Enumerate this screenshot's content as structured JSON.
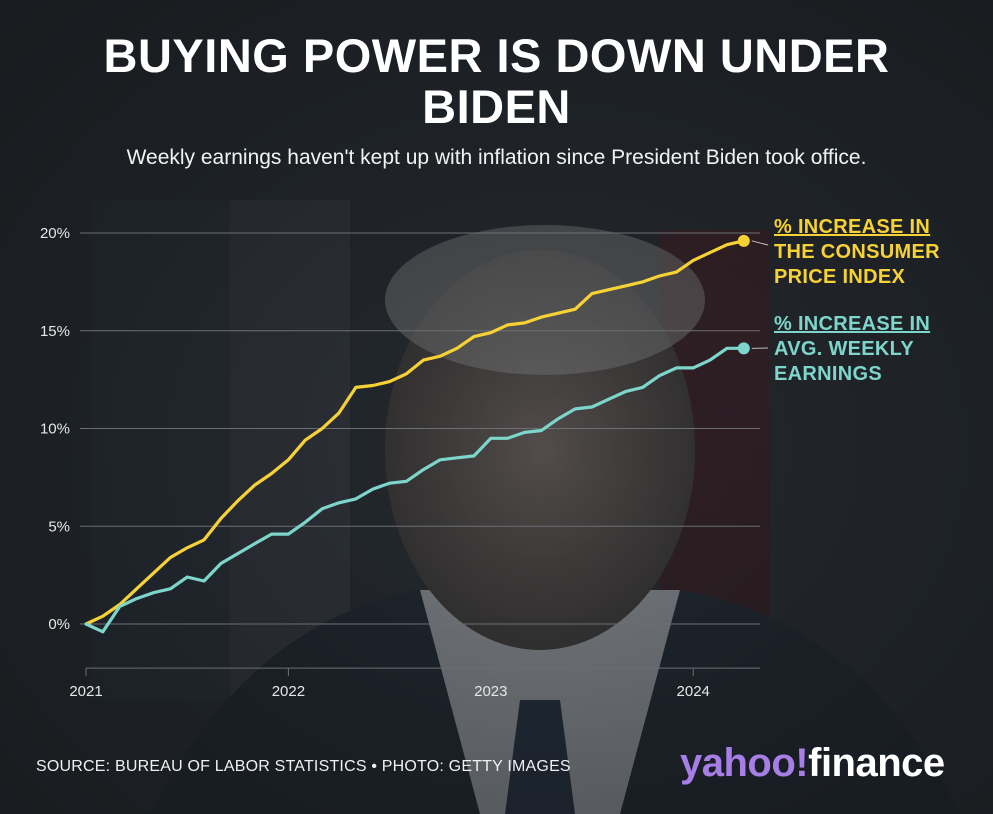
{
  "title": "BUYING POWER IS DOWN UNDER BIDEN",
  "subtitle": "Weekly earnings haven't kept up with inflation since President Biden took office.",
  "colors": {
    "cpi": "#f6d234",
    "wages": "#7dd5cb",
    "grid": "#6b6f74",
    "text": "#e6e6e6"
  },
  "chart_data": {
    "type": "line",
    "ylim": [
      -2,
      20
    ],
    "xlim": [
      2021.0,
      2024.33
    ],
    "yticks": [
      0,
      5,
      10,
      15,
      20
    ],
    "ytick_labels": [
      "0%",
      "5%",
      "10%",
      "15%",
      "20%"
    ],
    "xticks": [
      2021,
      2022,
      2023,
      2024
    ],
    "xtick_labels": [
      "2021",
      "2022",
      "2023",
      "2024"
    ],
    "grid": true,
    "series": [
      {
        "name": "% INCREASE IN THE CONSUMER PRICE INDEX",
        "color": "#f6d234",
        "x": [
          2021.0,
          2021.083,
          2021.167,
          2021.25,
          2021.333,
          2021.417,
          2021.5,
          2021.583,
          2021.667,
          2021.75,
          2021.833,
          2021.917,
          2022.0,
          2022.083,
          2022.167,
          2022.25,
          2022.333,
          2022.417,
          2022.5,
          2022.583,
          2022.667,
          2022.75,
          2022.833,
          2022.917,
          2023.0,
          2023.083,
          2023.167,
          2023.25,
          2023.333,
          2023.417,
          2023.5,
          2023.583,
          2023.667,
          2023.75,
          2023.833,
          2023.917,
          2024.0,
          2024.083,
          2024.167,
          2024.25
        ],
        "values": [
          0.0,
          0.4,
          1.0,
          1.8,
          2.6,
          3.4,
          3.9,
          4.3,
          5.4,
          6.3,
          7.1,
          7.7,
          8.4,
          9.4,
          10.0,
          10.8,
          12.1,
          12.2,
          12.4,
          12.8,
          13.5,
          13.7,
          14.1,
          14.7,
          14.9,
          15.3,
          15.4,
          15.7,
          15.9,
          16.1,
          16.9,
          17.1,
          17.3,
          17.5,
          17.8,
          18.0,
          18.6,
          19.0,
          19.4,
          19.6
        ]
      },
      {
        "name": "% INCREASE IN AVG. WEEKLY EARNINGS",
        "color": "#7dd5cb",
        "x": [
          2021.0,
          2021.083,
          2021.167,
          2021.25,
          2021.333,
          2021.417,
          2021.5,
          2021.583,
          2021.667,
          2021.75,
          2021.833,
          2021.917,
          2022.0,
          2022.083,
          2022.167,
          2022.25,
          2022.333,
          2022.417,
          2022.5,
          2022.583,
          2022.667,
          2022.75,
          2022.833,
          2022.917,
          2023.0,
          2023.083,
          2023.167,
          2023.25,
          2023.333,
          2023.417,
          2023.5,
          2023.583,
          2023.667,
          2023.75,
          2023.833,
          2023.917,
          2024.0,
          2024.083,
          2024.167,
          2024.25
        ],
        "values": [
          0.0,
          -0.4,
          0.9,
          1.3,
          1.6,
          1.8,
          2.4,
          2.2,
          3.1,
          3.6,
          4.1,
          4.6,
          4.6,
          5.2,
          5.9,
          6.2,
          6.4,
          6.9,
          7.2,
          7.3,
          7.9,
          8.4,
          8.5,
          8.6,
          9.5,
          9.5,
          9.8,
          9.9,
          10.5,
          11.0,
          11.1,
          11.5,
          11.9,
          12.1,
          12.7,
          13.1,
          13.1,
          13.5,
          14.1,
          14.1
        ]
      }
    ],
    "annotations": [
      {
        "series": "% INCREASE IN THE CONSUMER PRICE INDEX",
        "lines": [
          "% INCREASE IN",
          "THE CONSUMER",
          "PRICE INDEX"
        ]
      },
      {
        "series": "% INCREASE IN AVG. WEEKLY EARNINGS",
        "lines": [
          "% INCREASE IN",
          "AVG. WEEKLY",
          "EARNINGS"
        ]
      }
    ]
  },
  "footer": {
    "source": "SOURCE: BUREAU OF LABOR STATISTICS • PHOTO: GETTY IMAGES",
    "logo_part1": "yahoo",
    "logo_bang": "!",
    "logo_part2": "finance"
  }
}
